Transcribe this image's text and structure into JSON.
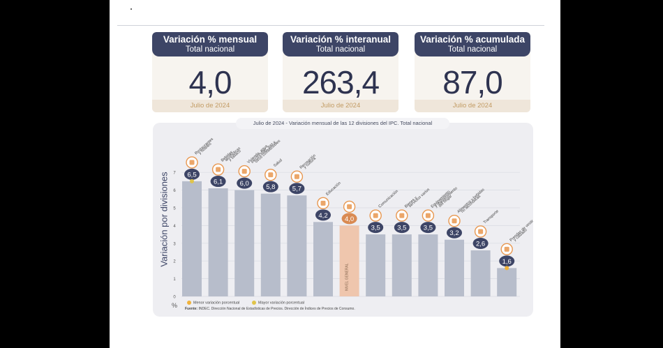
{
  "cards": [
    {
      "title": "Variación % mensual",
      "subtitle": "Total nacional",
      "value": "4,0",
      "date": "Julio de 2024"
    },
    {
      "title": "Variación % interanual",
      "subtitle": "Total nacional",
      "value": "263,4",
      "date": "Julio de 2024"
    },
    {
      "title": "Variación % acumulada",
      "subtitle": "Total nacional",
      "value": "87,0",
      "date": "Julio de 2024"
    }
  ],
  "chart_title": "Julio de 2024 - Variación mensual de las 12 divisiones del IPC. Total nacional",
  "legend": {
    "min": "Menor variación porcentual",
    "max": "Mayor variación porcentual",
    "min_color": "#f0b23a",
    "max_color": "#e0c44a"
  },
  "source": {
    "label": "Fuente:",
    "text": "INDEC. Dirección Nacional de Estadísticas de Precios. Dirección de Índices de Precios de Consumo."
  },
  "colors": {
    "bar": "#b7bdcb",
    "general": "#efc6ad",
    "badge": "#3d4566",
    "general_badge": "#d98a52",
    "accent": "#e8974f"
  },
  "chart_data": {
    "type": "bar",
    "ylabel": "Variación por divisiones",
    "yunit": "%",
    "ylim": [
      0,
      7
    ],
    "yticks": [
      0,
      1,
      2,
      3,
      4,
      5,
      6,
      7
    ],
    "grid": true,
    "categories": [
      "Restaurantes y hoteles",
      "Bebidas alcohólicas y tabaco",
      "Vivienda, agua, electricidad, gas y otros combustibles",
      "Salud",
      "Recreación y cultura",
      "Educación",
      "Nivel general",
      "Comunicación",
      "Bienes y servicios varios",
      "Equipamiento y mantenimiento del hogar",
      "Alimentos y bebidas no alcohólicas",
      "Transporte",
      "Prendas de vestir y calzado"
    ],
    "labels": [
      "6,5",
      "6,1",
      "6,0",
      "5,8",
      "5,7",
      "4,2",
      "4,0",
      "3,5",
      "3,5",
      "3,5",
      "3,2",
      "2,6",
      "1,6"
    ],
    "values": [
      6.5,
      6.1,
      6.0,
      5.8,
      5.7,
      4.2,
      4.0,
      3.5,
      3.5,
      3.5,
      3.2,
      2.6,
      1.6
    ],
    "category_labels": [
      [
        "Restaurantes",
        "y hoteles"
      ],
      [
        "Bebidas",
        "alcohólicas",
        "y tabaco"
      ],
      [
        "Vivienda, agua,",
        "electricidad, gas y",
        "otros combustibles"
      ],
      [
        "Salud"
      ],
      [
        "Recreación",
        "y cultura"
      ],
      [
        "Educación"
      ],
      [],
      [
        "Comunicación"
      ],
      [
        "Bienes y",
        "servicios varios"
      ],
      [
        "Equipamiento",
        "y mantenimiento",
        "del hogar"
      ],
      [
        "Alimentos y bebidas",
        "no alcohólicas"
      ],
      [
        "Transporte"
      ],
      [
        "Prendas de vestir",
        "y calzado"
      ]
    ],
    "general_label": "NIVEL GENERAL",
    "highlight_index": 6,
    "max_index": 0,
    "min_index": 12
  }
}
